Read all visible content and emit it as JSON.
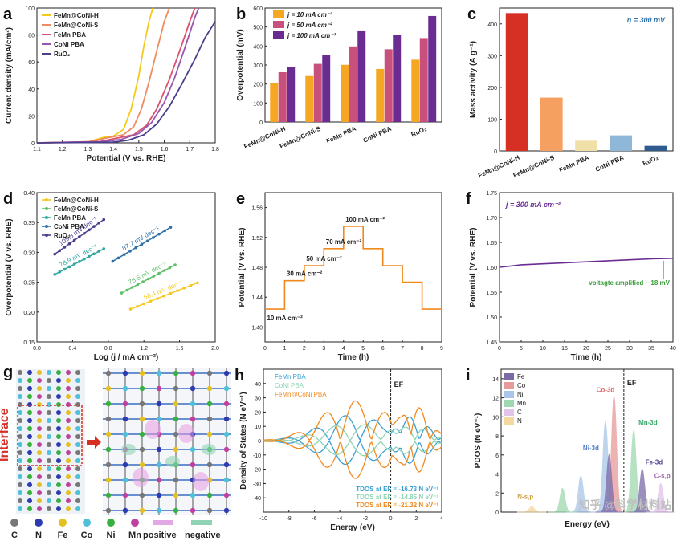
{
  "colors": {
    "fmch": "#f5c91c",
    "fmcs": "#f08a60",
    "fmpba": "#d9506e",
    "conipba": "#9a56b0",
    "ruo2": "#4a3f8c",
    "j10": "#f5a623",
    "j50": "#c94f7c",
    "j100": "#6a2c91",
    "massH": "#d62f24",
    "massS": "#f5a061",
    "massFm": "#efe0a8",
    "massCo": "#8fb7d8",
    "massRu": "#2f5b8e",
    "dos_fm": "#3aa0d0",
    "dos_co": "#8fd3b4",
    "dos_h": "#f08a1e"
  },
  "panel_labels": [
    "a",
    "b",
    "c",
    "d",
    "e",
    "f",
    "g",
    "h",
    "i"
  ],
  "chart_data": [
    {
      "id": "a",
      "type": "line",
      "xlabel": "Potential (V vs. RHE)",
      "ylabel": "Current density (mA/cm²)",
      "xlim": [
        1.1,
        1.8
      ],
      "ylim": [
        0,
        100
      ],
      "xticks": [
        "1.1",
        "1.2",
        "1.3",
        "1.4",
        "1.5",
        "1.6",
        "1.7",
        "1.8"
      ],
      "yticks": [
        "0",
        "20",
        "40",
        "60",
        "80",
        "100"
      ],
      "series": [
        {
          "name": "FeMn@CoNi-H",
          "color_key": "fmch",
          "x": [
            1.1,
            1.3,
            1.36,
            1.4,
            1.44,
            1.47,
            1.5,
            1.52,
            1.54,
            1.555
          ],
          "y": [
            0,
            0.6,
            4,
            5,
            10,
            25,
            50,
            72,
            90,
            100
          ]
        },
        {
          "name": "FeMn@CoNi-S",
          "color_key": "fmcs",
          "x": [
            1.1,
            1.3,
            1.37,
            1.44,
            1.48,
            1.51,
            1.54,
            1.57,
            1.6,
            1.62
          ],
          "y": [
            0,
            0.5,
            3.5,
            6,
            12,
            25,
            45,
            68,
            90,
            100
          ]
        },
        {
          "name": "FeMn PBA",
          "color_key": "fmpba",
          "x": [
            1.1,
            1.35,
            1.4,
            1.48,
            1.53,
            1.57,
            1.62,
            1.66,
            1.7,
            1.72
          ],
          "y": [
            0,
            1,
            3,
            6,
            13,
            25,
            47,
            68,
            90,
            100
          ]
        },
        {
          "name": "CoNi PBA",
          "color_key": "conipba",
          "x": [
            1.1,
            1.35,
            1.43,
            1.5,
            1.55,
            1.6,
            1.64,
            1.68,
            1.72,
            1.735
          ],
          "y": [
            0,
            0.8,
            2.5,
            7,
            15,
            30,
            48,
            70,
            93,
            100
          ]
        },
        {
          "name": "RuO₂",
          "color_key": "ruo2",
          "x": [
            1.1,
            1.4,
            1.46,
            1.52,
            1.57,
            1.62,
            1.67,
            1.72,
            1.76,
            1.8
          ],
          "y": [
            0,
            0.5,
            2,
            6,
            14,
            27,
            44,
            62,
            78,
            90
          ]
        }
      ]
    },
    {
      "id": "b",
      "type": "bar",
      "ylabel": "Overpotential (mV)",
      "ylim": [
        0,
        600
      ],
      "yticks": [
        "0",
        "100",
        "200",
        "300",
        "400",
        "500",
        "600"
      ],
      "categories": [
        "FeMn@CoNi-H",
        "FeMn@CoNi-S",
        "FeMn PBA",
        "CoNi PBA",
        "RuO₂"
      ],
      "series": [
        {
          "name": "j = 10 mA cm⁻²",
          "color_key": "j10",
          "values": [
            205,
            242,
            301,
            279,
            328
          ]
        },
        {
          "name": "j = 50 mA cm⁻²",
          "color_key": "j50",
          "values": [
            262,
            306,
            398,
            383,
            442
          ]
        },
        {
          "name": "j = 100 mA cm⁻²",
          "color_key": "j100",
          "values": [
            291,
            352,
            482,
            458,
            558
          ]
        }
      ]
    },
    {
      "id": "c",
      "type": "bar",
      "ylabel": "Mass activity (A g⁻¹)",
      "annotation": "η = 300 mV",
      "ylim": [
        0,
        450
      ],
      "yticks": [
        "0",
        "100",
        "200",
        "300",
        "400"
      ],
      "categories": [
        "FeMn@CoNi-H",
        "FeMn@CoNi-S",
        "FeMn PBA",
        "CoNi PBA",
        "RuO₂"
      ],
      "values": [
        434,
        168,
        32,
        49,
        16
      ],
      "color_keys": [
        "massH",
        "massS",
        "massFm",
        "massCo",
        "massRu"
      ]
    },
    {
      "id": "d",
      "type": "scatter",
      "xlabel": "Log (j / mA cm⁻²)",
      "ylabel": "Overpotential (V vs. RHE)",
      "xlim": [
        0.0,
        2.0
      ],
      "ylim": [
        0.15,
        0.4
      ],
      "xticks": [
        "0.0",
        "0.4",
        "0.8",
        "1.2",
        "1.6",
        "2.0"
      ],
      "yticks": [
        "0.15",
        "0.20",
        "0.25",
        "0.30",
        "0.35",
        "0.40"
      ],
      "series": [
        {
          "name": "FeMn@CoNi-H",
          "color_key": "fmch",
          "x": [
            1.05,
            1.8
          ],
          "y": [
            0.205,
            0.249
          ],
          "label": "58.4 mV dec⁻¹"
        },
        {
          "name": "FeMn@CoNi-S",
          "color_key": "#5fbf6a",
          "x": [
            0.95,
            1.55
          ],
          "y": [
            0.232,
            0.279
          ],
          "label": "76.5 mV dec⁻¹"
        },
        {
          "name": "FeMn PBA",
          "color_key": "#2fa8a0",
          "x": [
            0.2,
            0.75
          ],
          "y": [
            0.263,
            0.306
          ],
          "label": "78.9 mV dec⁻¹"
        },
        {
          "name": "CoNi PBA",
          "color_key": "#2f6fa8",
          "x": [
            0.85,
            1.5
          ],
          "y": [
            0.285,
            0.342
          ],
          "label": "87.7 mV dec⁻¹"
        },
        {
          "name": "RuO₂",
          "color_key": "ruo2",
          "x": [
            0.2,
            0.75
          ],
          "y": [
            0.297,
            0.355
          ],
          "label": "105.8 mV dec⁻¹"
        }
      ]
    },
    {
      "id": "e",
      "type": "line",
      "xlabel": "Time (h)",
      "ylabel": "Potential (V vs. RHE)",
      "xlim": [
        0,
        9
      ],
      "ylim": [
        1.38,
        1.58
      ],
      "xticks": [
        "0",
        "1",
        "2",
        "3",
        "4",
        "5",
        "6",
        "7",
        "8",
        "9"
      ],
      "yticks": [
        "1.40",
        "1.44",
        "1.48",
        "1.52",
        "1.56"
      ],
      "steps_x": [
        0,
        1,
        2,
        3,
        4,
        5,
        6,
        7,
        8,
        9
      ],
      "steps_y": [
        1.424,
        1.462,
        1.482,
        1.505,
        1.535,
        1.505,
        1.482,
        1.46,
        1.424
      ],
      "step_labels": [
        "10 mA cm⁻²",
        "30 mA cm⁻²",
        "50 mA cm⁻²",
        "70 mA cm⁻²",
        "100 mA cm⁻²"
      ]
    },
    {
      "id": "f",
      "type": "line",
      "xlabel": "Time (h)",
      "ylabel": "Potential (V vs. RHE)",
      "annotation": "j = 300 mA cm⁻²",
      "note": "voltagte amplified ~ 18 mV",
      "xlim": [
        0,
        40
      ],
      "ylim": [
        1.45,
        1.75
      ],
      "xticks": [
        "0",
        "5",
        "10",
        "15",
        "20",
        "25",
        "30",
        "35",
        "40"
      ],
      "yticks": [
        "1.45",
        "1.50",
        "1.55",
        "1.60",
        "1.65",
        "1.70",
        "1.75"
      ],
      "x": [
        0,
        5,
        10,
        15,
        20,
        25,
        30,
        35,
        40
      ],
      "y": [
        1.6,
        1.605,
        1.607,
        1.609,
        1.611,
        1.613,
        1.615,
        1.617,
        1.618
      ]
    },
    {
      "id": "h",
      "type": "line",
      "xlabel": "Energy (eV)",
      "ylabel": "Density of States (N eV⁻¹)",
      "ef_label": "EF",
      "xlim": [
        -10,
        4
      ],
      "ylim": [
        -50,
        50
      ],
      "xticks": [
        "-10",
        "-8",
        "-6",
        "-4",
        "-2",
        "0",
        "2",
        "4"
      ],
      "yticks": [
        "-40",
        "-30",
        "-20",
        "-10",
        "0",
        "10",
        "20",
        "30",
        "40"
      ],
      "series": [
        {
          "name": "FeMn PBA",
          "color_key": "dos_fm"
        },
        {
          "name": "CoNi PBA",
          "color_key": "dos_co"
        },
        {
          "name": "FeMn@CoNi PBA",
          "color_key": "dos_h"
        }
      ],
      "tdos": [
        "TDOS at EF = -16.73 N eV⁻¹",
        "TDOS at EF = -14.85 N eV⁻¹",
        "TDOS at EF = -21.32 N eV⁻¹"
      ]
    },
    {
      "id": "i",
      "type": "area",
      "xlabel": "Energy (eV)",
      "ylabel": "PDOS (N eV⁻¹)",
      "ef_label": "EF",
      "ylim": [
        0,
        15
      ],
      "yticks": [
        "0",
        "2",
        "4",
        "6",
        "8",
        "10",
        "12",
        "14"
      ],
      "legend": [
        "Fe",
        "Co",
        "Ni",
        "Mn",
        "C",
        "N"
      ],
      "legend_colors": [
        "#7a6aa8",
        "#e79a9a",
        "#a9c6e8",
        "#9ed8b0",
        "#e2c4ea",
        "#f4d8a0"
      ],
      "peak_labels": [
        "Co-3d",
        "Mn-3d",
        "Ni-3d",
        "Fe-3d",
        "C-s,p",
        "N-s,p"
      ]
    }
  ],
  "panel_g": {
    "interface_label": "Interface",
    "atoms": [
      "C",
      "N",
      "Fe",
      "Co",
      "Ni",
      "Mn"
    ],
    "atom_colors": [
      "#777777",
      "#2d3ab0",
      "#e6c020",
      "#4fc0d8",
      "#38b040",
      "#c040a0"
    ],
    "legend_pos": "positive",
    "legend_neg": "negative"
  },
  "watermark": "知乎 @科学材料站"
}
